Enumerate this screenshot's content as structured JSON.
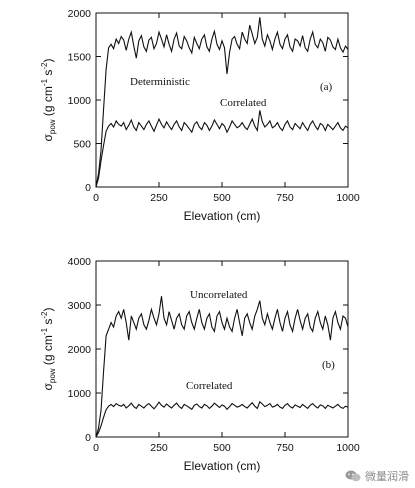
{
  "chart_data": [
    {
      "type": "line",
      "panel_label": "(a)",
      "xlabel": "Elevation (cm)",
      "ylabel_main": "σ",
      "ylabel_sub": "pow",
      "ylabel_units": " (g cm",
      "ylabel_exp1": "-1",
      "ylabel_mid": " s",
      "ylabel_exp2": "-2",
      "ylabel_end": ")",
      "xlim": [
        0,
        1000
      ],
      "ylim": [
        0,
        2000
      ],
      "xticks": [
        0,
        250,
        500,
        750,
        1000
      ],
      "yticks": [
        0,
        500,
        1000,
        1500,
        2000
      ],
      "grid": false,
      "series": [
        {
          "name": "Deterministic",
          "x": [
            0,
            10,
            20,
            30,
            40,
            50,
            60,
            70,
            80,
            90,
            100,
            110,
            120,
            130,
            140,
            150,
            160,
            170,
            180,
            190,
            200,
            210,
            220,
            230,
            240,
            250,
            260,
            270,
            280,
            290,
            300,
            310,
            320,
            330,
            340,
            350,
            360,
            370,
            380,
            390,
            400,
            410,
            420,
            430,
            440,
            450,
            460,
            470,
            480,
            490,
            500,
            510,
            520,
            530,
            540,
            550,
            560,
            570,
            580,
            590,
            600,
            610,
            620,
            630,
            640,
            650,
            660,
            670,
            680,
            690,
            700,
            710,
            720,
            730,
            740,
            750,
            760,
            770,
            780,
            790,
            800,
            810,
            820,
            830,
            840,
            850,
            860,
            870,
            880,
            890,
            900,
            910,
            920,
            930,
            940,
            950,
            960,
            970,
            980,
            990,
            1000
          ],
          "values": [
            0,
            150,
            420,
            900,
            1350,
            1600,
            1640,
            1590,
            1700,
            1650,
            1730,
            1690,
            1570,
            1700,
            1780,
            1620,
            1480,
            1680,
            1740,
            1610,
            1560,
            1690,
            1720,
            1590,
            1650,
            1780,
            1700,
            1610,
            1750,
            1640,
            1560,
            1700,
            1770,
            1620,
            1590,
            1730,
            1680,
            1600,
            1540,
            1720,
            1650,
            1590,
            1700,
            1750,
            1610,
            1560,
            1700,
            1790,
            1640,
            1580,
            1680,
            1600,
            1300,
            1550,
            1700,
            1730,
            1640,
            1590,
            1780,
            1700,
            1650,
            1860,
            1760,
            1650,
            1720,
            1950,
            1700,
            1620,
            1750,
            1680,
            1580,
            1700,
            1780,
            1640,
            1590,
            1700,
            1750,
            1610,
            1560,
            1700,
            1680,
            1620,
            1740,
            1600,
            1560,
            1700,
            1780,
            1640,
            1600,
            1700,
            1660,
            1560,
            1720,
            1690,
            1610,
            1580,
            1700,
            1600,
            1550,
            1620,
            1580
          ]
        },
        {
          "name": "Correlated",
          "x": [
            0,
            10,
            20,
            30,
            40,
            50,
            60,
            70,
            80,
            90,
            100,
            110,
            120,
            130,
            140,
            150,
            160,
            170,
            180,
            190,
            200,
            210,
            220,
            230,
            240,
            250,
            260,
            270,
            280,
            290,
            300,
            310,
            320,
            330,
            340,
            350,
            360,
            370,
            380,
            390,
            400,
            410,
            420,
            430,
            440,
            450,
            460,
            470,
            480,
            490,
            500,
            510,
            520,
            530,
            540,
            550,
            560,
            570,
            580,
            590,
            600,
            610,
            620,
            630,
            640,
            650,
            660,
            670,
            680,
            690,
            700,
            710,
            720,
            730,
            740,
            750,
            760,
            770,
            780,
            790,
            800,
            810,
            820,
            830,
            840,
            850,
            860,
            870,
            880,
            890,
            900,
            910,
            920,
            930,
            940,
            950,
            960,
            970,
            980,
            990,
            1000
          ],
          "values": [
            0,
            100,
            300,
            480,
            640,
            700,
            730,
            690,
            760,
            720,
            700,
            740,
            660,
            710,
            770,
            690,
            650,
            740,
            700,
            660,
            720,
            760,
            700,
            640,
            710,
            780,
            720,
            680,
            750,
            700,
            660,
            720,
            760,
            690,
            650,
            740,
            710,
            670,
            630,
            720,
            750,
            690,
            660,
            740,
            710,
            650,
            700,
            770,
            720,
            670,
            730,
            700,
            630,
            690,
            760,
            720,
            680,
            700,
            740,
            690,
            660,
            720,
            780,
            700,
            650,
            880,
            750,
            690,
            720,
            760,
            680,
            700,
            740,
            680,
            650,
            720,
            760,
            690,
            660,
            730,
            700,
            670,
            740,
            690,
            650,
            720,
            760,
            700,
            660,
            730,
            710,
            650,
            720,
            690,
            660,
            700,
            740,
            680,
            650,
            700,
            680
          ]
        }
      ]
    },
    {
      "type": "line",
      "panel_label": "(b)",
      "xlabel": "Elevation (cm)",
      "ylabel_main": "σ",
      "ylabel_sub": "pow",
      "ylabel_units": " (g cm",
      "ylabel_exp1": "-1",
      "ylabel_mid": " s",
      "ylabel_exp2": "-2",
      "ylabel_end": ")",
      "xlim": [
        0,
        1000
      ],
      "ylim": [
        0,
        4000
      ],
      "xticks": [
        0,
        250,
        500,
        750,
        1000
      ],
      "yticks": [
        0,
        1000,
        2000,
        3000,
        4000
      ],
      "grid": false,
      "series": [
        {
          "name": "Uncorrelated",
          "x": [
            0,
            10,
            20,
            30,
            40,
            50,
            60,
            70,
            80,
            90,
            100,
            110,
            120,
            130,
            140,
            150,
            160,
            170,
            180,
            190,
            200,
            210,
            220,
            230,
            240,
            250,
            260,
            270,
            280,
            290,
            300,
            310,
            320,
            330,
            340,
            350,
            360,
            370,
            380,
            390,
            400,
            410,
            420,
            430,
            440,
            450,
            460,
            470,
            480,
            490,
            500,
            510,
            520,
            530,
            540,
            550,
            560,
            570,
            580,
            590,
            600,
            610,
            620,
            630,
            640,
            650,
            660,
            670,
            680,
            690,
            700,
            710,
            720,
            730,
            740,
            750,
            760,
            770,
            780,
            790,
            800,
            810,
            820,
            830,
            840,
            850,
            860,
            870,
            880,
            890,
            900,
            910,
            920,
            930,
            940,
            950,
            960,
            970,
            980,
            990,
            1000
          ],
          "values": [
            0,
            200,
            600,
            1500,
            2300,
            2450,
            2600,
            2500,
            2750,
            2850,
            2700,
            2900,
            2600,
            2200,
            2750,
            2600,
            2450,
            2700,
            2800,
            2550,
            2450,
            2650,
            2900,
            2700,
            2550,
            2800,
            3200,
            2700,
            2550,
            2850,
            2650,
            2450,
            2700,
            2800,
            2550,
            2450,
            2750,
            2850,
            2600,
            2450,
            2700,
            2900,
            2600,
            2450,
            2700,
            2800,
            2500,
            2400,
            2750,
            2850,
            2600,
            2450,
            2700,
            2500,
            2400,
            2700,
            2900,
            2600,
            2300,
            2700,
            2800,
            2600,
            2450,
            2750,
            2900,
            3100,
            2700,
            2550,
            2800,
            2600,
            2450,
            2700,
            2900,
            2600,
            2400,
            2700,
            2850,
            2550,
            2400,
            2700,
            2900,
            2650,
            2450,
            2700,
            2800,
            2500,
            2400,
            2700,
            2850,
            2600,
            2450,
            2750,
            2550,
            2200,
            2700,
            2850,
            2600,
            2450,
            2750,
            2700,
            2500
          ]
        },
        {
          "name": "Correlated",
          "x": [
            0,
            10,
            20,
            30,
            40,
            50,
            60,
            70,
            80,
            90,
            100,
            110,
            120,
            130,
            140,
            150,
            160,
            170,
            180,
            190,
            200,
            210,
            220,
            230,
            240,
            250,
            260,
            270,
            280,
            290,
            300,
            310,
            320,
            330,
            340,
            350,
            360,
            370,
            380,
            390,
            400,
            410,
            420,
            430,
            440,
            450,
            460,
            470,
            480,
            490,
            500,
            510,
            520,
            530,
            540,
            550,
            560,
            570,
            580,
            590,
            600,
            610,
            620,
            630,
            640,
            650,
            660,
            670,
            680,
            690,
            700,
            710,
            720,
            730,
            740,
            750,
            760,
            770,
            780,
            790,
            800,
            810,
            820,
            830,
            840,
            850,
            860,
            870,
            880,
            890,
            900,
            910,
            920,
            930,
            940,
            950,
            960,
            970,
            980,
            990,
            1000
          ],
          "values": [
            0,
            100,
            250,
            450,
            620,
            700,
            740,
            690,
            760,
            720,
            700,
            740,
            660,
            710,
            770,
            690,
            650,
            740,
            700,
            660,
            720,
            760,
            700,
            640,
            710,
            790,
            720,
            680,
            750,
            700,
            660,
            720,
            770,
            690,
            650,
            740,
            710,
            670,
            630,
            720,
            750,
            690,
            660,
            740,
            710,
            650,
            700,
            770,
            720,
            670,
            730,
            700,
            630,
            690,
            760,
            720,
            680,
            700,
            740,
            690,
            660,
            720,
            780,
            700,
            650,
            800,
            750,
            690,
            720,
            760,
            680,
            700,
            740,
            680,
            650,
            720,
            760,
            690,
            660,
            730,
            700,
            670,
            740,
            690,
            650,
            720,
            760,
            700,
            660,
            730,
            710,
            650,
            720,
            690,
            660,
            700,
            740,
            680,
            650,
            700,
            680
          ]
        }
      ]
    }
  ],
  "watermark": {
    "text": "微量润滑",
    "icon": "wechat-icon"
  }
}
